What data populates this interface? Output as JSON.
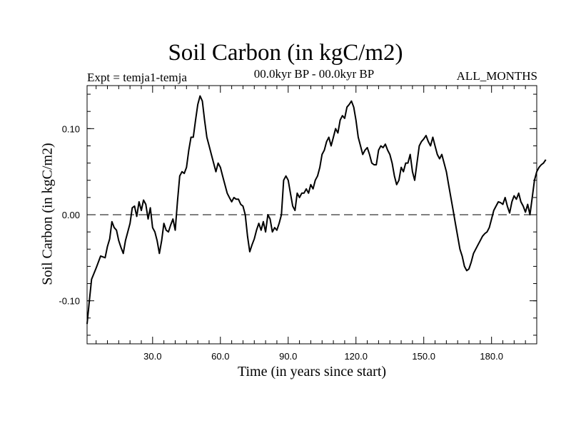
{
  "chart_data": {
    "type": "line",
    "title": "Soil Carbon (in kgC/m2)",
    "experiment_label": "Expt = temja1-temja",
    "period_label": "00.0kyr BP - 00.0kyr BP",
    "months_label": "ALL_MONTHS",
    "xlabel": "Time (in years since start)",
    "ylabel": "Soil Carbon (in kgC/m2)",
    "xlim": [
      1,
      200
    ],
    "ylim": [
      -0.15,
      0.15
    ],
    "x_ticks": [
      30,
      60,
      90,
      120,
      150,
      180
    ],
    "x_tick_labels": [
      "30.0",
      "60.0",
      "90.0",
      "120.0",
      "150.0",
      "180.0"
    ],
    "y_ticks": [
      0.1,
      0.0,
      -0.1
    ],
    "y_tick_labels": [
      "0.10",
      "0.00",
      "-0.10"
    ],
    "reference_line": 0.0,
    "grid": false,
    "series": [
      {
        "color": "#000000",
        "points": [
          [
            1,
            -0.127
          ],
          [
            2,
            -0.1
          ],
          [
            3,
            -0.075
          ],
          [
            5,
            -0.062
          ],
          [
            7,
            -0.048
          ],
          [
            9,
            -0.05
          ],
          [
            10,
            -0.037
          ],
          [
            11,
            -0.028
          ],
          [
            12,
            -0.008
          ],
          [
            13,
            -0.015
          ],
          [
            14,
            -0.018
          ],
          [
            15,
            -0.03
          ],
          [
            16,
            -0.038
          ],
          [
            17,
            -0.045
          ],
          [
            18,
            -0.03
          ],
          [
            20,
            -0.01
          ],
          [
            21,
            0.008
          ],
          [
            22,
            0.01
          ],
          [
            23,
            -0.002
          ],
          [
            24,
            0.015
          ],
          [
            25,
            0.005
          ],
          [
            26,
            0.017
          ],
          [
            27,
            0.012
          ],
          [
            28,
            -0.005
          ],
          [
            29,
            0.008
          ],
          [
            30,
            -0.015
          ],
          [
            31,
            -0.02
          ],
          [
            32,
            -0.03
          ],
          [
            33,
            -0.045
          ],
          [
            34,
            -0.03
          ],
          [
            35,
            -0.01
          ],
          [
            36,
            -0.018
          ],
          [
            37,
            -0.02
          ],
          [
            38,
            -0.012
          ],
          [
            39,
            -0.005
          ],
          [
            40,
            -0.018
          ],
          [
            41,
            0.015
          ],
          [
            42,
            0.045
          ],
          [
            43,
            0.05
          ],
          [
            44,
            0.048
          ],
          [
            45,
            0.055
          ],
          [
            46,
            0.075
          ],
          [
            47,
            0.09
          ],
          [
            48,
            0.09
          ],
          [
            49,
            0.11
          ],
          [
            50,
            0.128
          ],
          [
            51,
            0.138
          ],
          [
            52,
            0.132
          ],
          [
            53,
            0.11
          ],
          [
            54,
            0.09
          ],
          [
            55,
            0.08
          ],
          [
            56,
            0.07
          ],
          [
            57,
            0.06
          ],
          [
            58,
            0.05
          ],
          [
            59,
            0.06
          ],
          [
            60,
            0.055
          ],
          [
            61,
            0.045
          ],
          [
            62,
            0.035
          ],
          [
            63,
            0.025
          ],
          [
            64,
            0.02
          ],
          [
            65,
            0.015
          ],
          [
            66,
            0.02
          ],
          [
            67,
            0.018
          ],
          [
            68,
            0.018
          ],
          [
            69,
            0.012
          ],
          [
            70,
            0.01
          ],
          [
            71,
            0.0
          ],
          [
            72,
            -0.025
          ],
          [
            73,
            -0.043
          ],
          [
            74,
            -0.035
          ],
          [
            75,
            -0.028
          ],
          [
            76,
            -0.018
          ],
          [
            77,
            -0.01
          ],
          [
            78,
            -0.018
          ],
          [
            79,
            -0.008
          ],
          [
            80,
            -0.02
          ],
          [
            81,
            0.0
          ],
          [
            82,
            -0.005
          ],
          [
            83,
            -0.02
          ],
          [
            84,
            -0.015
          ],
          [
            85,
            -0.018
          ],
          [
            86,
            -0.01
          ],
          [
            87,
            0.0
          ],
          [
            88,
            0.04
          ],
          [
            89,
            0.045
          ],
          [
            90,
            0.04
          ],
          [
            91,
            0.025
          ],
          [
            92,
            0.01
          ],
          [
            93,
            0.005
          ],
          [
            94,
            0.025
          ],
          [
            95,
            0.02
          ],
          [
            96,
            0.025
          ],
          [
            97,
            0.025
          ],
          [
            98,
            0.03
          ],
          [
            99,
            0.025
          ],
          [
            100,
            0.035
          ],
          [
            101,
            0.03
          ],
          [
            102,
            0.04
          ],
          [
            103,
            0.045
          ],
          [
            104,
            0.055
          ],
          [
            105,
            0.07
          ],
          [
            106,
            0.075
          ],
          [
            107,
            0.085
          ],
          [
            108,
            0.09
          ],
          [
            109,
            0.08
          ],
          [
            110,
            0.09
          ],
          [
            111,
            0.1
          ],
          [
            112,
            0.095
          ],
          [
            113,
            0.11
          ],
          [
            114,
            0.115
          ],
          [
            115,
            0.112
          ],
          [
            116,
            0.125
          ],
          [
            117,
            0.128
          ],
          [
            118,
            0.132
          ],
          [
            119,
            0.125
          ],
          [
            120,
            0.11
          ],
          [
            121,
            0.09
          ],
          [
            122,
            0.08
          ],
          [
            123,
            0.07
          ],
          [
            124,
            0.075
          ],
          [
            125,
            0.078
          ],
          [
            126,
            0.07
          ],
          [
            127,
            0.06
          ],
          [
            128,
            0.058
          ],
          [
            129,
            0.058
          ],
          [
            130,
            0.075
          ],
          [
            131,
            0.08
          ],
          [
            132,
            0.078
          ],
          [
            133,
            0.082
          ],
          [
            134,
            0.075
          ],
          [
            135,
            0.07
          ],
          [
            136,
            0.06
          ],
          [
            137,
            0.045
          ],
          [
            138,
            0.035
          ],
          [
            139,
            0.04
          ],
          [
            140,
            0.055
          ],
          [
            141,
            0.05
          ],
          [
            142,
            0.06
          ],
          [
            143,
            0.06
          ],
          [
            144,
            0.07
          ],
          [
            145,
            0.05
          ],
          [
            146,
            0.04
          ],
          [
            147,
            0.06
          ],
          [
            148,
            0.08
          ],
          [
            149,
            0.085
          ],
          [
            150,
            0.088
          ],
          [
            151,
            0.092
          ],
          [
            152,
            0.085
          ],
          [
            153,
            0.08
          ],
          [
            154,
            0.09
          ],
          [
            155,
            0.08
          ],
          [
            156,
            0.07
          ],
          [
            157,
            0.065
          ],
          [
            158,
            0.07
          ],
          [
            159,
            0.06
          ],
          [
            160,
            0.05
          ],
          [
            161,
            0.035
          ],
          [
            162,
            0.02
          ],
          [
            163,
            0.005
          ],
          [
            164,
            -0.01
          ],
          [
            165,
            -0.025
          ],
          [
            166,
            -0.04
          ],
          [
            167,
            -0.048
          ],
          [
            168,
            -0.06
          ],
          [
            169,
            -0.065
          ],
          [
            170,
            -0.063
          ],
          [
            171,
            -0.055
          ],
          [
            172,
            -0.045
          ],
          [
            173,
            -0.04
          ],
          [
            174,
            -0.035
          ],
          [
            175,
            -0.03
          ],
          [
            176,
            -0.025
          ],
          [
            177,
            -0.022
          ],
          [
            178,
            -0.02
          ],
          [
            179,
            -0.015
          ],
          [
            180,
            -0.005
          ],
          [
            181,
            0.005
          ],
          [
            182,
            0.01
          ],
          [
            183,
            0.015
          ],
          [
            184,
            0.014
          ],
          [
            185,
            0.012
          ],
          [
            186,
            0.02
          ],
          [
            187,
            0.01
          ],
          [
            188,
            0.002
          ],
          [
            189,
            0.015
          ],
          [
            190,
            0.022
          ],
          [
            191,
            0.018
          ],
          [
            192,
            0.025
          ],
          [
            193,
            0.015
          ],
          [
            194,
            0.01
          ],
          [
            195,
            0.003
          ],
          [
            196,
            0.012
          ],
          [
            197,
            0.0
          ],
          [
            198,
            0.02
          ],
          [
            199,
            0.04
          ],
          [
            200,
            0.05
          ],
          [
            201,
            0.055
          ],
          [
            202,
            0.058
          ],
          [
            203,
            0.06
          ],
          [
            204,
            0.064
          ]
        ]
      }
    ]
  }
}
